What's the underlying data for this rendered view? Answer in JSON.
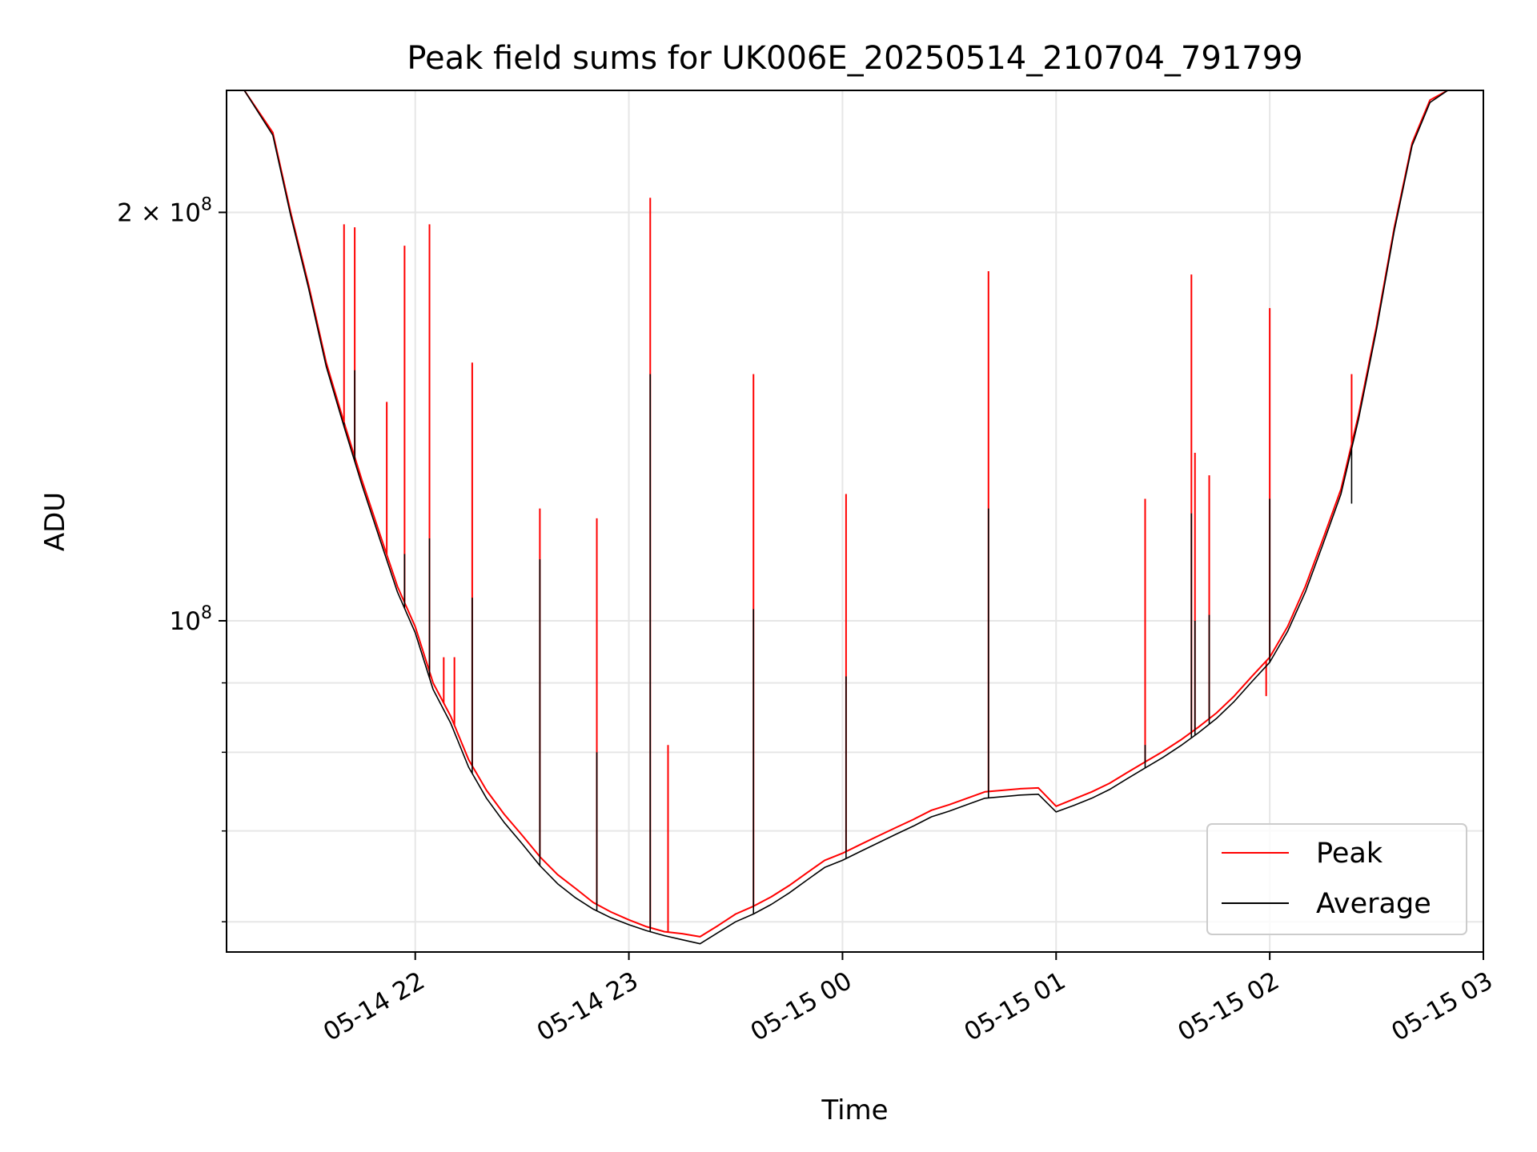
{
  "chart_data": {
    "type": "line",
    "title": "Peak field sums for UK006E_20250514_210704_791799",
    "xlabel": "Time",
    "ylabel": "ADU",
    "y_scale": "log",
    "xlim": [
      "2025-05-14 21:07",
      "2025-05-15 03:00"
    ],
    "ylim": [
      57000000,
      246000000
    ],
    "grid": true,
    "legend_position": "lower-right",
    "x_tick_labels": [
      "05-14 22",
      "05-14 23",
      "05-15 00",
      "05-15 01",
      "05-15 02",
      "05-15 03"
    ],
    "x_ticks": [
      "2025-05-14 22:00",
      "2025-05-14 23:00",
      "2025-05-15 00:00",
      "2025-05-15 01:00",
      "2025-05-15 02:00",
      "2025-05-15 03:00"
    ],
    "y_major_ticks": [
      {
        "value": 100000000,
        "label": "10^8"
      },
      {
        "value": 200000000,
        "label": "2 × 10^8"
      }
    ],
    "y_minor_ticks": [
      60000000,
      70000000,
      80000000,
      90000000
    ],
    "series": [
      {
        "name": "Peak",
        "color": "#ff0000",
        "points": [
          [
            "2025-05-14 21:12",
            246000000
          ],
          [
            "2025-05-14 21:20",
            229000000
          ],
          [
            "2025-05-14 21:25",
            200000000
          ],
          [
            "2025-05-14 21:30",
            177000000
          ],
          [
            "2025-05-14 21:35",
            155000000
          ],
          [
            "2025-05-14 21:40",
            140000000
          ],
          [
            "2025-05-14 21:45",
            127000000
          ],
          [
            "2025-05-14 21:50",
            116000000
          ],
          [
            "2025-05-14 21:55",
            106000000
          ],
          [
            "2025-05-14 22:00",
            99000000
          ],
          [
            "2025-05-14 22:05",
            90000000
          ],
          [
            "2025-05-14 22:10",
            85000000
          ],
          [
            "2025-05-14 22:15",
            79000000
          ],
          [
            "2025-05-14 22:20",
            75000000
          ],
          [
            "2025-05-14 22:25",
            72000000
          ],
          [
            "2025-05-14 22:30",
            69500000
          ],
          [
            "2025-05-14 22:35",
            67000000
          ],
          [
            "2025-05-14 22:40",
            65000000
          ],
          [
            "2025-05-14 22:45",
            63500000
          ],
          [
            "2025-05-14 22:50",
            62000000
          ],
          [
            "2025-05-14 22:55",
            61000000
          ],
          [
            "2025-05-14 23:00",
            60200000
          ],
          [
            "2025-05-14 23:05",
            59500000
          ],
          [
            "2025-05-14 23:10",
            59000000
          ],
          [
            "2025-05-14 23:15",
            58800000
          ],
          [
            "2025-05-14 23:20",
            58500000
          ],
          [
            "2025-05-14 23:25",
            59600000
          ],
          [
            "2025-05-14 23:30",
            60800000
          ],
          [
            "2025-05-14 23:35",
            61600000
          ],
          [
            "2025-05-14 23:40",
            62600000
          ],
          [
            "2025-05-14 23:45",
            63800000
          ],
          [
            "2025-05-14 23:50",
            65200000
          ],
          [
            "2025-05-14 23:55",
            66600000
          ],
          [
            "2025-05-15 00:00",
            67400000
          ],
          [
            "2025-05-15 00:05",
            68400000
          ],
          [
            "2025-05-15 00:10",
            69400000
          ],
          [
            "2025-05-15 00:15",
            70400000
          ],
          [
            "2025-05-15 00:20",
            71400000
          ],
          [
            "2025-05-15 00:25",
            72500000
          ],
          [
            "2025-05-15 00:30",
            73200000
          ],
          [
            "2025-05-15 00:35",
            74000000
          ],
          [
            "2025-05-15 00:40",
            74800000
          ],
          [
            "2025-05-15 00:45",
            75000000
          ],
          [
            "2025-05-15 00:50",
            75200000
          ],
          [
            "2025-05-15 00:55",
            75300000
          ],
          [
            "2025-05-15 01:00",
            73000000
          ],
          [
            "2025-05-15 01:05",
            73900000
          ],
          [
            "2025-05-15 01:10",
            74800000
          ],
          [
            "2025-05-15 01:15",
            75900000
          ],
          [
            "2025-05-15 01:20",
            77300000
          ],
          [
            "2025-05-15 01:25",
            78700000
          ],
          [
            "2025-05-15 01:30",
            80100000
          ],
          [
            "2025-05-15 01:35",
            81700000
          ],
          [
            "2025-05-15 01:40",
            83500000
          ],
          [
            "2025-05-15 01:45",
            85500000
          ],
          [
            "2025-05-15 01:50",
            88000000
          ],
          [
            "2025-05-15 01:55",
            91000000
          ],
          [
            "2025-05-15 02:00",
            94000000
          ],
          [
            "2025-05-15 02:05",
            99000000
          ],
          [
            "2025-05-15 02:10",
            106000000
          ],
          [
            "2025-05-15 02:15",
            115000000
          ],
          [
            "2025-05-15 02:20",
            125000000
          ],
          [
            "2025-05-15 02:25",
            142000000
          ],
          [
            "2025-05-15 02:30",
            165000000
          ],
          [
            "2025-05-15 02:35",
            195000000
          ],
          [
            "2025-05-15 02:40",
            225000000
          ],
          [
            "2025-05-15 02:45",
            242000000
          ],
          [
            "2025-05-15 02:50",
            246000000
          ]
        ],
        "spikes": [
          [
            "2025-05-14 21:40",
            196000000
          ],
          [
            "2025-05-14 21:43",
            195000000
          ],
          [
            "2025-05-14 21:52",
            145000000
          ],
          [
            "2025-05-14 21:57",
            189000000
          ],
          [
            "2025-05-14 22:04",
            196000000
          ],
          [
            "2025-05-14 22:08",
            94000000
          ],
          [
            "2025-05-14 22:11",
            94000000
          ],
          [
            "2025-05-14 22:16",
            155000000
          ],
          [
            "2025-05-14 22:35",
            121000000
          ],
          [
            "2025-05-14 22:51",
            119000000
          ],
          [
            "2025-05-14 23:06",
            205000000
          ],
          [
            "2025-05-14 23:11",
            81000000
          ],
          [
            "2025-05-14 23:35",
            152000000
          ],
          [
            "2025-05-15 00:01",
            124000000
          ],
          [
            "2025-05-15 00:41",
            181000000
          ],
          [
            "2025-05-15 01:25",
            123000000
          ],
          [
            "2025-05-15 01:38",
            180000000
          ],
          [
            "2025-05-15 01:39",
            133000000
          ],
          [
            "2025-05-15 01:43",
            128000000
          ],
          [
            "2025-05-15 01:59",
            88000000
          ],
          [
            "2025-05-15 02:00",
            170000000
          ],
          [
            "2025-05-15 02:23",
            152000000
          ]
        ]
      },
      {
        "name": "Average",
        "color": "#000000",
        "points": [
          [
            "2025-05-14 21:12",
            246000000
          ],
          [
            "2025-05-14 21:20",
            228000000
          ],
          [
            "2025-05-14 21:25",
            199000000
          ],
          [
            "2025-05-14 21:30",
            176000000
          ],
          [
            "2025-05-14 21:35",
            154000000
          ],
          [
            "2025-05-14 21:40",
            139000000
          ],
          [
            "2025-05-14 21:45",
            126000000
          ],
          [
            "2025-05-14 21:50",
            115000000
          ],
          [
            "2025-05-14 21:55",
            105000000
          ],
          [
            "2025-05-14 22:00",
            98000000
          ],
          [
            "2025-05-14 22:05",
            89000000
          ],
          [
            "2025-05-14 22:10",
            84000000
          ],
          [
            "2025-05-14 22:15",
            78000000
          ],
          [
            "2025-05-14 22:20",
            74000000
          ],
          [
            "2025-05-14 22:25",
            71000000
          ],
          [
            "2025-05-14 22:30",
            68500000
          ],
          [
            "2025-05-14 22:35",
            66000000
          ],
          [
            "2025-05-14 22:40",
            64000000
          ],
          [
            "2025-05-14 22:45",
            62500000
          ],
          [
            "2025-05-14 22:50",
            61300000
          ],
          [
            "2025-05-14 22:55",
            60400000
          ],
          [
            "2025-05-14 23:00",
            59700000
          ],
          [
            "2025-05-14 23:05",
            59100000
          ],
          [
            "2025-05-14 23:10",
            58600000
          ],
          [
            "2025-05-14 23:15",
            58200000
          ],
          [
            "2025-05-14 23:20",
            57800000
          ],
          [
            "2025-05-14 23:25",
            58900000
          ],
          [
            "2025-05-14 23:30",
            60000000
          ],
          [
            "2025-05-14 23:35",
            60800000
          ],
          [
            "2025-05-14 23:40",
            61800000
          ],
          [
            "2025-05-14 23:45",
            63000000
          ],
          [
            "2025-05-14 23:50",
            64400000
          ],
          [
            "2025-05-14 23:55",
            65800000
          ],
          [
            "2025-05-15 00:00",
            66600000
          ],
          [
            "2025-05-15 00:05",
            67600000
          ],
          [
            "2025-05-15 00:10",
            68600000
          ],
          [
            "2025-05-15 00:15",
            69600000
          ],
          [
            "2025-05-15 00:20",
            70600000
          ],
          [
            "2025-05-15 00:25",
            71700000
          ],
          [
            "2025-05-15 00:30",
            72400000
          ],
          [
            "2025-05-15 00:35",
            73200000
          ],
          [
            "2025-05-15 00:40",
            74000000
          ],
          [
            "2025-05-15 00:45",
            74200000
          ],
          [
            "2025-05-15 00:50",
            74400000
          ],
          [
            "2025-05-15 00:55",
            74500000
          ],
          [
            "2025-05-15 01:00",
            72300000
          ],
          [
            "2025-05-15 01:05",
            73100000
          ],
          [
            "2025-05-15 01:10",
            74000000
          ],
          [
            "2025-05-15 01:15",
            75100000
          ],
          [
            "2025-05-15 01:20",
            76500000
          ],
          [
            "2025-05-15 01:25",
            77900000
          ],
          [
            "2025-05-15 01:30",
            79300000
          ],
          [
            "2025-05-15 01:35",
            80900000
          ],
          [
            "2025-05-15 01:40",
            82700000
          ],
          [
            "2025-05-15 01:45",
            84700000
          ],
          [
            "2025-05-15 01:50",
            87200000
          ],
          [
            "2025-05-15 01:55",
            90200000
          ],
          [
            "2025-05-15 02:00",
            93200000
          ],
          [
            "2025-05-15 02:05",
            98200000
          ],
          [
            "2025-05-15 02:10",
            105000000
          ],
          [
            "2025-05-15 02:15",
            114000000
          ],
          [
            "2025-05-15 02:20",
            124000000
          ],
          [
            "2025-05-15 02:25",
            141000000
          ],
          [
            "2025-05-15 02:30",
            164000000
          ],
          [
            "2025-05-15 02:35",
            194000000
          ],
          [
            "2025-05-15 02:40",
            224000000
          ],
          [
            "2025-05-15 02:45",
            241000000
          ],
          [
            "2025-05-15 02:50",
            246000000
          ]
        ],
        "spikes": [
          [
            "2025-05-14 21:40",
            140000000
          ],
          [
            "2025-05-14 21:43",
            153000000
          ],
          [
            "2025-05-14 21:57",
            112000000
          ],
          [
            "2025-05-14 22:04",
            115000000
          ],
          [
            "2025-05-14 22:16",
            104000000
          ],
          [
            "2025-05-14 22:35",
            111000000
          ],
          [
            "2025-05-14 22:51",
            80000000
          ],
          [
            "2025-05-14 23:06",
            152000000
          ],
          [
            "2025-05-14 23:35",
            102000000
          ],
          [
            "2025-05-15 00:01",
            91000000
          ],
          [
            "2025-05-15 00:41",
            121000000
          ],
          [
            "2025-05-15 01:25",
            81000000
          ],
          [
            "2025-05-15 01:38",
            120000000
          ],
          [
            "2025-05-15 01:39",
            100000000
          ],
          [
            "2025-05-15 01:43",
            101000000
          ],
          [
            "2025-05-15 02:00",
            123000000
          ],
          [
            "2025-05-15 02:23",
            122000000
          ]
        ]
      }
    ]
  }
}
